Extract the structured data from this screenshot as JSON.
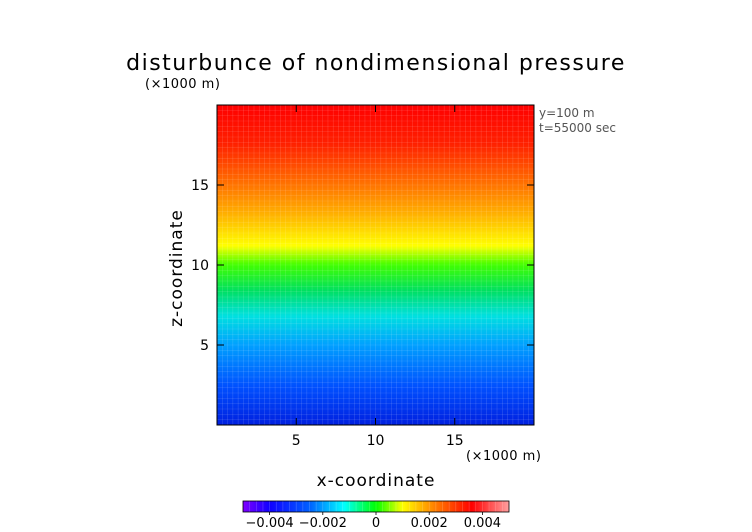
{
  "chart_data": {
    "type": "heatmap",
    "title": "disturbunce of nondimensional pressure",
    "xlabel": "x-coordinate",
    "ylabel": "z-coordinate",
    "x_unit_label": "(×1000 m)",
    "y_unit_label": "(×1000 m)",
    "info_lines": [
      "y=100 m",
      "t=55000 sec"
    ],
    "xlim": [
      0,
      20
    ],
    "ylim": [
      0,
      20
    ],
    "x_ticks": [
      5,
      10,
      15
    ],
    "y_ticks": [
      5,
      10,
      15
    ],
    "x_tick_labels": [
      "5",
      "10",
      "15"
    ],
    "y_tick_labels": [
      "5",
      "10",
      "15"
    ],
    "z_values": [
      {
        "z": 0.5,
        "value": -0.005
      },
      {
        "z": 5,
        "value": -0.0025
      },
      {
        "z": 10,
        "value": 0.0
      },
      {
        "z": 15,
        "value": 0.0025
      },
      {
        "z": 19.5,
        "value": 0.005
      }
    ],
    "colorbar": {
      "range": [
        -0.005,
        0.005
      ],
      "ticks": [
        -0.004,
        -0.002,
        0,
        0.002,
        0.004
      ],
      "tick_labels": [
        "−0.004",
        "−0.002",
        "0",
        "0.002",
        "0.004"
      ],
      "colors": [
        "#8000ff",
        "#0000ff",
        "#0080ff",
        "#00ffff",
        "#00ff00",
        "#ffff00",
        "#ff8000",
        "#ff0000",
        "#ff8080"
      ]
    }
  }
}
